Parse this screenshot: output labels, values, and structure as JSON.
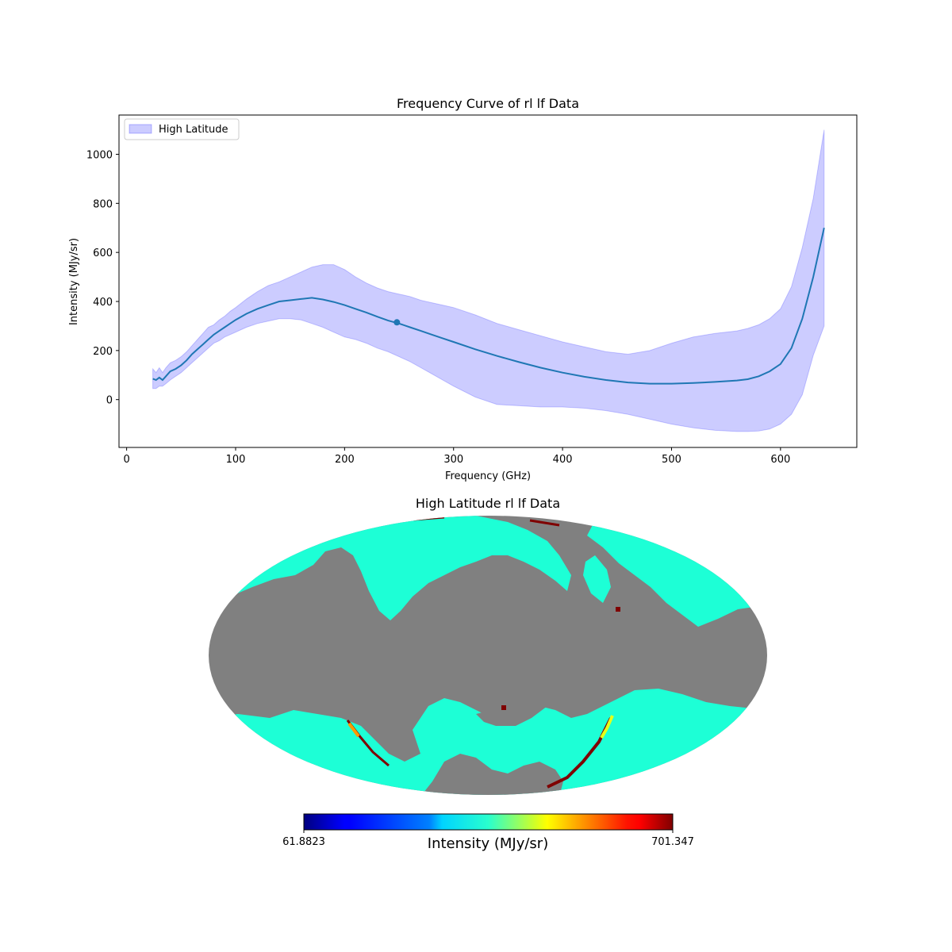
{
  "chart_data": [
    {
      "type": "line",
      "title": "Frequency Curve of rl lf Data",
      "xlabel": "Frequency (GHz)",
      "ylabel": "Intensity (MJy/sr)",
      "xlim": [
        -7,
        670
      ],
      "ylim": [
        -195,
        1160
      ],
      "xticks": [
        0,
        100,
        200,
        300,
        400,
        500,
        600
      ],
      "yticks": [
        0,
        200,
        400,
        600,
        800,
        1000
      ],
      "legend": {
        "position": "top-left",
        "entries": [
          "High Latitude"
        ]
      },
      "band_color": "#0000ff",
      "line_color": "#1f77b4",
      "series": [
        {
          "x": [
            24,
            27,
            30,
            33,
            36,
            40,
            45,
            50,
            55,
            60,
            65,
            70,
            75,
            80,
            85,
            90,
            95,
            100,
            110,
            120,
            130,
            140,
            150,
            160,
            170,
            180,
            190,
            200,
            210,
            220,
            230,
            240,
            250,
            260,
            270,
            280,
            290,
            300,
            320,
            340,
            360,
            380,
            400,
            420,
            440,
            460,
            480,
            500,
            520,
            540,
            560,
            570,
            580,
            590,
            600,
            610,
            620,
            630,
            640
          ],
          "mean": [
            85,
            80,
            90,
            80,
            95,
            115,
            125,
            140,
            160,
            185,
            205,
            225,
            245,
            265,
            280,
            295,
            310,
            325,
            350,
            370,
            385,
            400,
            405,
            410,
            415,
            408,
            398,
            385,
            370,
            355,
            338,
            322,
            310,
            295,
            280,
            265,
            250,
            235,
            205,
            178,
            153,
            130,
            110,
            93,
            80,
            70,
            65,
            65,
            68,
            72,
            78,
            83,
            95,
            115,
            145,
            210,
            330,
            500,
            700
          ],
          "lower": [
            45,
            45,
            55,
            55,
            65,
            80,
            95,
            110,
            130,
            150,
            170,
            190,
            210,
            230,
            240,
            255,
            265,
            275,
            295,
            310,
            320,
            330,
            330,
            325,
            310,
            295,
            275,
            255,
            245,
            230,
            210,
            195,
            175,
            155,
            130,
            105,
            80,
            55,
            10,
            -20,
            -25,
            -30,
            -30,
            -35,
            -45,
            -60,
            -80,
            -100,
            -115,
            -125,
            -130,
            -130,
            -128,
            -120,
            -100,
            -60,
            20,
            180,
            300
          ],
          "upper": [
            125,
            110,
            130,
            110,
            130,
            150,
            160,
            175,
            195,
            220,
            245,
            270,
            295,
            305,
            325,
            340,
            360,
            375,
            410,
            440,
            465,
            480,
            500,
            520,
            540,
            550,
            550,
            530,
            500,
            475,
            455,
            440,
            430,
            420,
            405,
            395,
            385,
            375,
            345,
            310,
            285,
            260,
            235,
            215,
            195,
            185,
            200,
            230,
            255,
            270,
            280,
            290,
            305,
            330,
            370,
            460,
            620,
            820,
            1100
          ]
        }
      ],
      "highlight_point": {
        "x": 248,
        "y": 315
      }
    },
    {
      "type": "heatmap",
      "title": "High Latitude rl lf Data",
      "projection": "Mollweide",
      "colormap": "jet",
      "colorbar": {
        "label": "Intensity (MJy/sr)",
        "min_label": "61.8823",
        "max_label": "701.347"
      },
      "masked_color": "#808080",
      "dominant_color": "#1dffd6"
    }
  ]
}
